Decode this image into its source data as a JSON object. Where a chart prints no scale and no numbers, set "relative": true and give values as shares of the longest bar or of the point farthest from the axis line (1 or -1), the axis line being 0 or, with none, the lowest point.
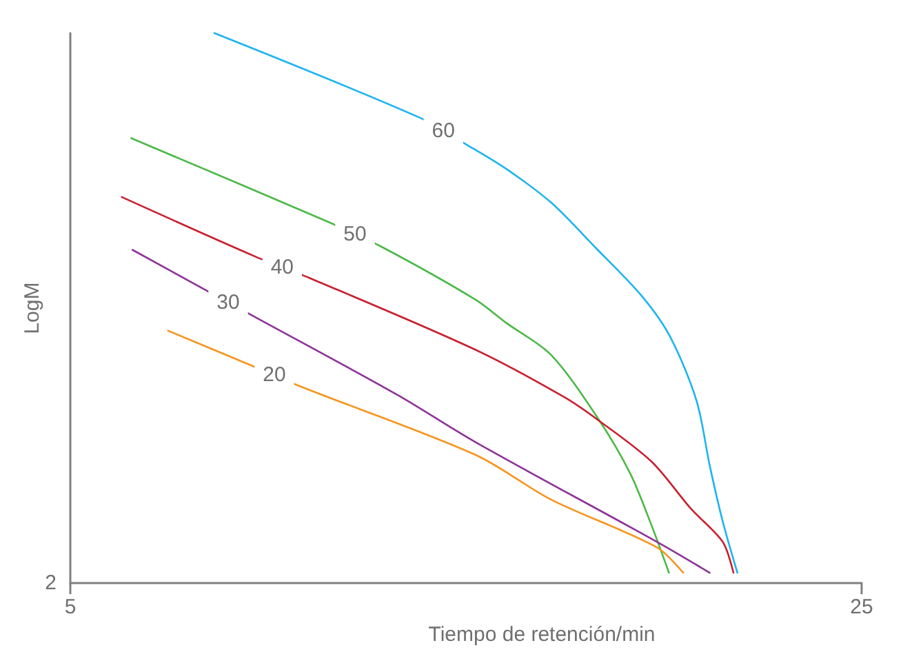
{
  "chart_data": {
    "type": "line",
    "xlabel": "Tiempo de retención/min",
    "ylabel": "LogM",
    "relative": true,
    "xlim": [
      5,
      25
    ],
    "xticks": [
      5,
      25
    ],
    "annotations": [
      "2"
    ],
    "grid": false,
    "legend": false,
    "series": [
      {
        "name": "60",
        "color": "#1eb4f0",
        "x": [
          8.64,
          13.84,
          15.02,
          16.02,
          17.15,
          18.26,
          19.42,
          20.16,
          20.83,
          21.16,
          21.49,
          21.86
        ],
        "values": [
          1.0,
          0.846,
          0.797,
          0.753,
          0.692,
          0.611,
          0.524,
          0.448,
          0.331,
          0.214,
          0.112,
          0.019
        ]
      },
      {
        "name": "50",
        "color": "#4cb848",
        "x": [
          6.54,
          11.51,
          12.88,
          15.25,
          16.02,
          17.15,
          18.35,
          19.16,
          19.69,
          20.13
        ],
        "values": [
          0.809,
          0.657,
          0.611,
          0.515,
          0.473,
          0.415,
          0.298,
          0.198,
          0.105,
          0.019
        ]
      },
      {
        "name": "40",
        "color": "#c8202f",
        "x": [
          6.3,
          9.67,
          11.04,
          15.25,
          17.49,
          18.35,
          19.69,
          20.69,
          21.49,
          21.76
        ],
        "values": [
          0.702,
          0.594,
          0.555,
          0.424,
          0.338,
          0.296,
          0.221,
          0.135,
          0.075,
          0.019
        ]
      },
      {
        "name": "30",
        "color": "#8e3399",
        "x": [
          6.57,
          8.34,
          9.64,
          13.25,
          15.25,
          19.83,
          21.16
        ],
        "values": [
          0.606,
          0.536,
          0.485,
          0.343,
          0.256,
          0.075,
          0.019
        ]
      },
      {
        "name": "20",
        "color": "#f7941d",
        "x": [
          7.47,
          9.47,
          10.84,
          15.25,
          17.15,
          19.83,
          20.49
        ],
        "values": [
          0.459,
          0.399,
          0.357,
          0.233,
          0.152,
          0.065,
          0.019
        ]
      }
    ]
  }
}
